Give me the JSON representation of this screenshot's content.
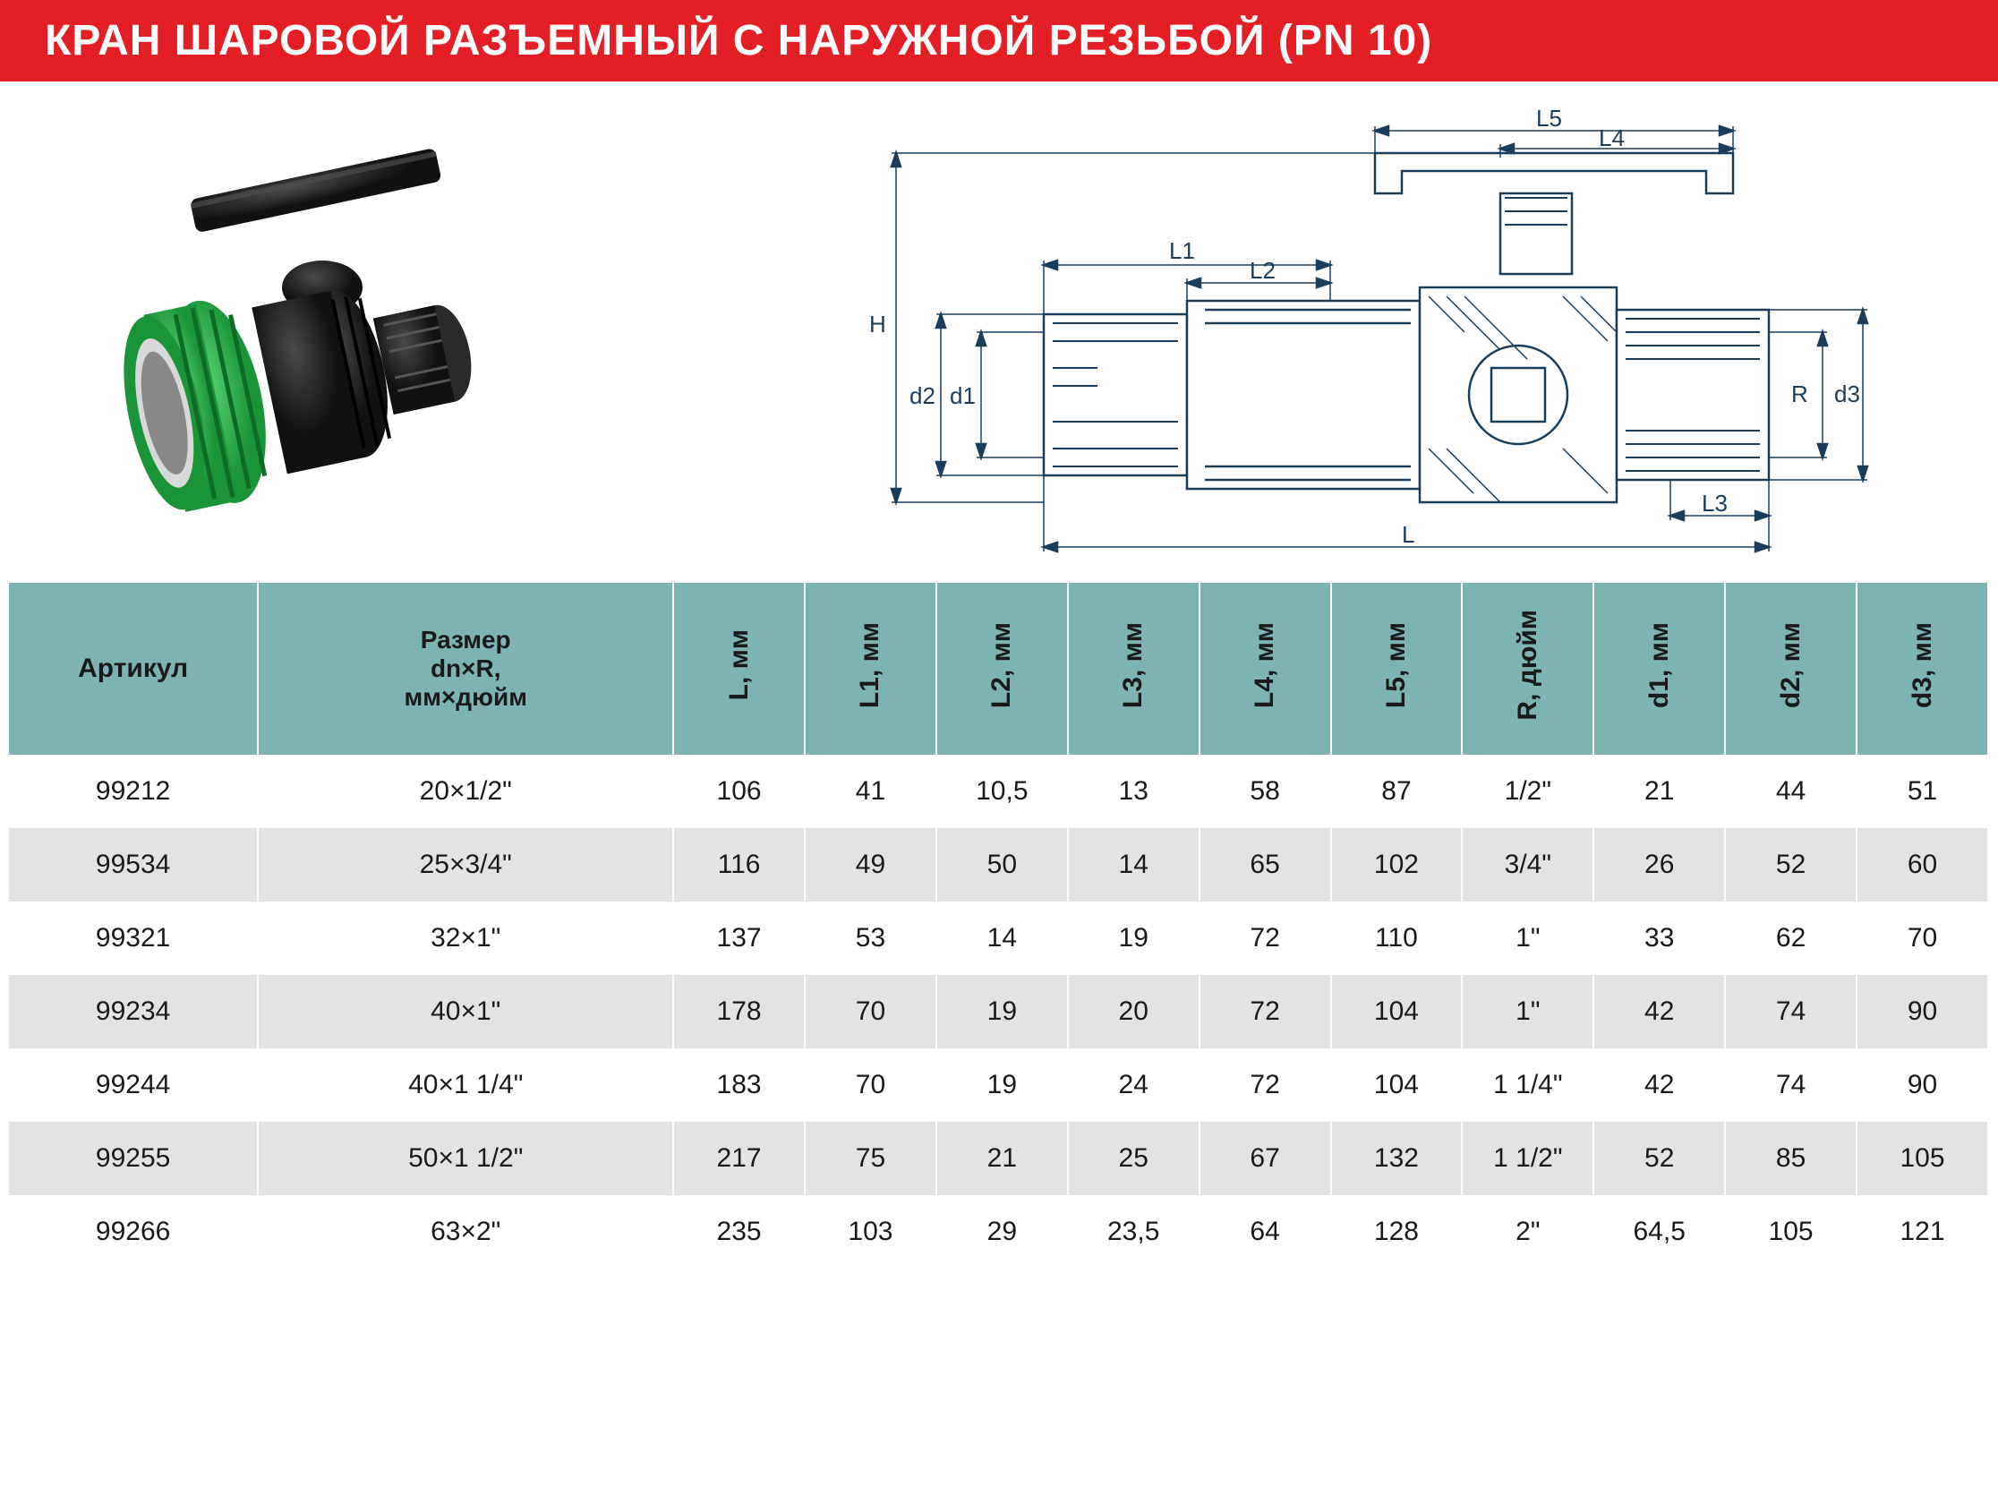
{
  "header": {
    "title": "КРАН ШАРОВОЙ РАЗЪЕМНЫЙ С НАРУЖНОЙ РЕЗЬБОЙ (PN 10)",
    "bg_color": "#e31e24",
    "text_color": "#ffffff"
  },
  "diagram": {
    "labels": [
      "L5",
      "L4",
      "L1",
      "L2",
      "H",
      "d2",
      "d1",
      "R",
      "d3",
      "L3",
      "L"
    ],
    "stroke_color": "#1a3d5c"
  },
  "product_colors": {
    "body": "#2a2a2a",
    "nut": "#2dbd4e",
    "handle": "#1a1a1a"
  },
  "table": {
    "header_bg": "#7db3b3",
    "row_even_bg": "#e3e3e3",
    "row_odd_bg": "#ffffff",
    "columns": [
      "Артикул",
      "Размер dn×R, мм×дюйм",
      "L, мм",
      "L1, мм",
      "L2, мм",
      "L3, мм",
      "L4, мм",
      "L5, мм",
      "R, дюйм",
      "d1, мм",
      "d2, мм",
      "d3, мм"
    ],
    "rows": [
      [
        "99212",
        "20×1/2\"",
        "106",
        "41",
        "10,5",
        "13",
        "58",
        "87",
        "1/2\"",
        "21",
        "44",
        "51"
      ],
      [
        "99534",
        "25×3/4\"",
        "116",
        "49",
        "50",
        "14",
        "65",
        "102",
        "3/4\"",
        "26",
        "52",
        "60"
      ],
      [
        "99321",
        "32×1\"",
        "137",
        "53",
        "14",
        "19",
        "72",
        "110",
        "1\"",
        "33",
        "62",
        "70"
      ],
      [
        "99234",
        "40×1\"",
        "178",
        "70",
        "19",
        "20",
        "72",
        "104",
        "1\"",
        "42",
        "74",
        "90"
      ],
      [
        "99244",
        "40×1 1/4\"",
        "183",
        "70",
        "19",
        "24",
        "72",
        "104",
        "1 1/4\"",
        "42",
        "74",
        "90"
      ],
      [
        "99255",
        "50×1 1/2\"",
        "217",
        "75",
        "21",
        "25",
        "67",
        "132",
        "1 1/2\"",
        "52",
        "85",
        "105"
      ],
      [
        "99266",
        "63×2\"",
        "235",
        "103",
        "29",
        "23,5",
        "64",
        "128",
        "2\"",
        "64,5",
        "105",
        "121"
      ]
    ]
  }
}
